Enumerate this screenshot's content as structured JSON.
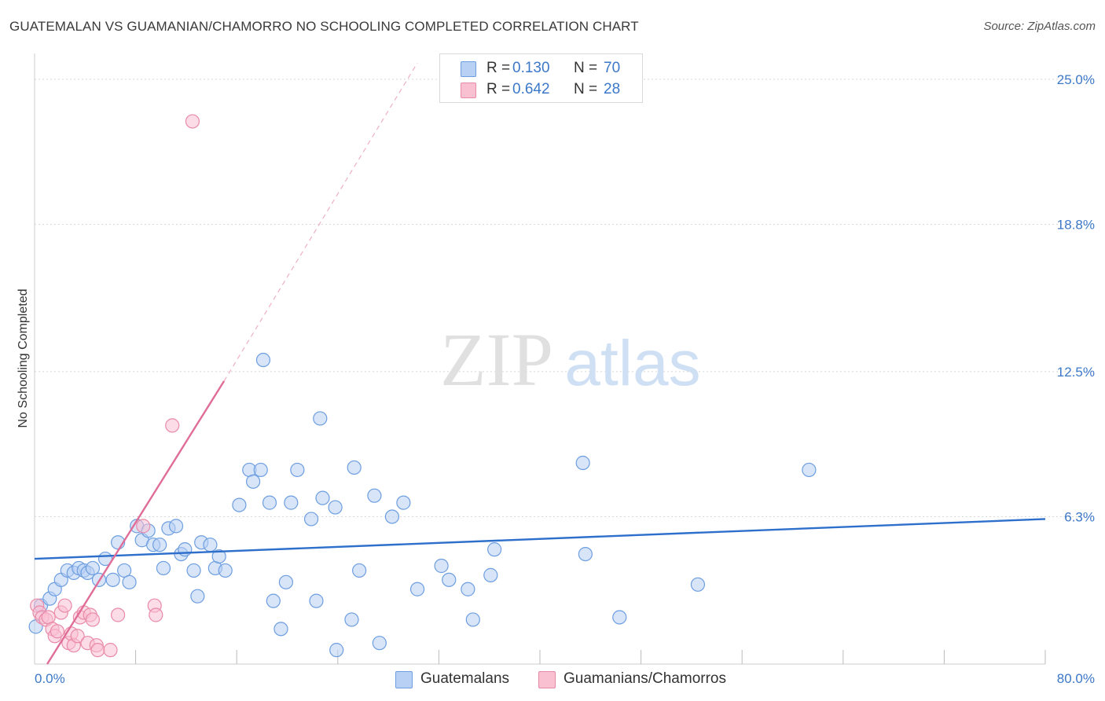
{
  "title": "GUATEMALAN VS GUAMANIAN/CHAMORRO NO SCHOOLING COMPLETED CORRELATION CHART",
  "source": "Source: ZipAtlas.com",
  "watermark": {
    "zip": "ZIP",
    "atlas": "atlas"
  },
  "legend": {
    "r_label": "R =",
    "n_label": "N =",
    "series": [
      {
        "name": "Guatemalans",
        "r": "0.130",
        "n": "70",
        "fill": "#b8d0f4",
        "stroke": "#6d9ee0"
      },
      {
        "name": "Guamanians/Chamorros",
        "r": "0.642",
        "n": "28",
        "fill": "#f9c0d2",
        "stroke": "#e98aa8"
      }
    ]
  },
  "chart_data": {
    "type": "scatter",
    "title": "GUATEMALAN VS GUAMANIAN/CHAMORRO NO SCHOOLING COMPLETED CORRELATION CHART",
    "xlabel": "",
    "ylabel": "No Schooling Completed",
    "xlim": [
      0,
      80
    ],
    "ylim": [
      0,
      25.7
    ],
    "x_tick_labels": [
      "0.0%",
      "80.0%"
    ],
    "y_ticks": [
      6.3,
      12.5,
      18.8,
      25.0
    ],
    "y_tick_labels": [
      "6.3%",
      "12.5%",
      "18.8%",
      "25.0%"
    ],
    "grid": true,
    "colors": {
      "guatemalan_line": "#2e6fcb",
      "guamanian_line": "#e06d97",
      "grid": "#d8d8d8",
      "tick_text": "#3c78c8"
    },
    "series": [
      {
        "name": "Guatemalans",
        "points": [
          [
            0.1,
            1.6
          ],
          [
            0.5,
            2.5
          ],
          [
            1.2,
            2.8
          ],
          [
            1.6,
            3.2
          ],
          [
            2.1,
            3.6
          ],
          [
            2.6,
            4.0
          ],
          [
            3.1,
            3.9
          ],
          [
            3.5,
            4.1
          ],
          [
            3.9,
            4.0
          ],
          [
            4.2,
            3.9
          ],
          [
            4.6,
            4.1
          ],
          [
            5.1,
            3.6
          ],
          [
            5.6,
            4.5
          ],
          [
            6.2,
            3.6
          ],
          [
            6.6,
            5.2
          ],
          [
            7.1,
            4.0
          ],
          [
            7.5,
            3.5
          ],
          [
            8.1,
            5.9
          ],
          [
            8.5,
            5.3
          ],
          [
            9.0,
            5.7
          ],
          [
            9.4,
            5.1
          ],
          [
            9.9,
            5.1
          ],
          [
            10.2,
            4.1
          ],
          [
            10.6,
            5.8
          ],
          [
            11.2,
            5.9
          ],
          [
            11.6,
            4.7
          ],
          [
            11.9,
            4.9
          ],
          [
            12.6,
            4.0
          ],
          [
            12.9,
            2.9
          ],
          [
            13.2,
            5.2
          ],
          [
            13.9,
            5.1
          ],
          [
            14.3,
            4.1
          ],
          [
            14.6,
            4.6
          ],
          [
            15.1,
            4.0
          ],
          [
            16.2,
            6.8
          ],
          [
            17.0,
            8.3
          ],
          [
            17.3,
            7.8
          ],
          [
            17.9,
            8.3
          ],
          [
            18.1,
            13.0
          ],
          [
            18.6,
            6.9
          ],
          [
            18.9,
            2.7
          ],
          [
            19.5,
            1.5
          ],
          [
            19.9,
            3.5
          ],
          [
            20.3,
            6.9
          ],
          [
            20.8,
            8.3
          ],
          [
            21.9,
            6.2
          ],
          [
            22.3,
            2.7
          ],
          [
            22.6,
            10.5
          ],
          [
            22.8,
            7.1
          ],
          [
            23.8,
            6.7
          ],
          [
            23.9,
            0.6
          ],
          [
            25.1,
            1.9
          ],
          [
            25.3,
            8.4
          ],
          [
            25.7,
            4.0
          ],
          [
            26.9,
            7.2
          ],
          [
            27.3,
            0.9
          ],
          [
            28.3,
            6.3
          ],
          [
            29.2,
            6.9
          ],
          [
            30.3,
            3.2
          ],
          [
            32.2,
            4.2
          ],
          [
            32.8,
            3.6
          ],
          [
            34.3,
            3.2
          ],
          [
            34.7,
            1.9
          ],
          [
            36.1,
            3.8
          ],
          [
            36.4,
            4.9
          ],
          [
            43.4,
            8.6
          ],
          [
            43.6,
            4.7
          ],
          [
            46.3,
            2.0
          ],
          [
            52.5,
            3.4
          ],
          [
            61.3,
            8.3
          ]
        ]
      },
      {
        "name": "Guamanians/Chamorros",
        "points": [
          [
            0.2,
            2.5
          ],
          [
            0.4,
            2.2
          ],
          [
            0.6,
            2.0
          ],
          [
            0.9,
            1.9
          ],
          [
            1.1,
            2.0
          ],
          [
            1.4,
            1.5
          ],
          [
            1.6,
            1.2
          ],
          [
            1.8,
            1.4
          ],
          [
            2.1,
            2.2
          ],
          [
            2.4,
            2.5
          ],
          [
            2.7,
            0.9
          ],
          [
            2.9,
            1.3
          ],
          [
            3.1,
            0.8
          ],
          [
            3.4,
            1.2
          ],
          [
            3.6,
            2.0
          ],
          [
            3.9,
            2.2
          ],
          [
            4.2,
            0.9
          ],
          [
            4.4,
            2.1
          ],
          [
            4.6,
            1.9
          ],
          [
            4.9,
            0.8
          ],
          [
            5.0,
            0.6
          ],
          [
            6.0,
            0.6
          ],
          [
            6.6,
            2.1
          ],
          [
            8.6,
            5.9
          ],
          [
            9.5,
            2.5
          ],
          [
            9.6,
            2.1
          ],
          [
            10.9,
            10.2
          ],
          [
            12.5,
            23.2
          ]
        ]
      }
    ],
    "trend_lines": [
      {
        "series": "Guatemalans",
        "from": [
          0.0,
          4.5
        ],
        "to": [
          80.0,
          6.2
        ],
        "style": "solid"
      },
      {
        "series": "Guamanians/Chamorros",
        "from": [
          1.0,
          0.0
        ],
        "to": [
          15.0,
          12.1
        ],
        "style": "solid"
      },
      {
        "series": "Guamanians/Chamorros",
        "from": [
          15.0,
          12.1
        ],
        "to": [
          30.3,
          25.7
        ],
        "style": "dashed"
      }
    ]
  }
}
